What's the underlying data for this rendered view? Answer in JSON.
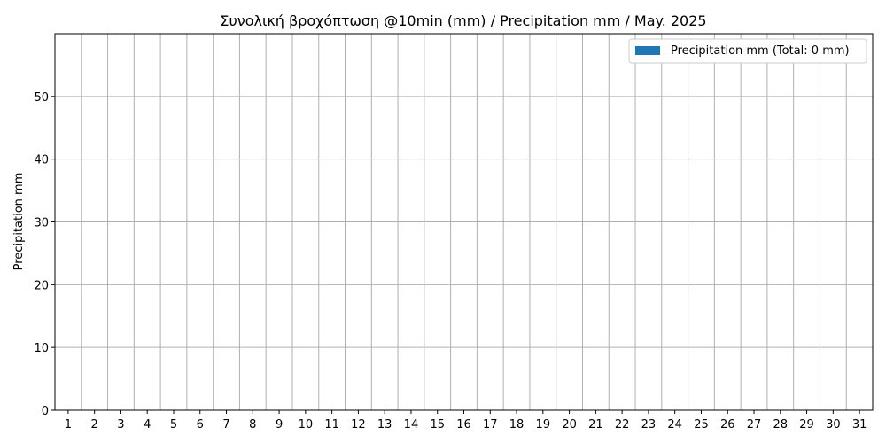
{
  "chart_data": {
    "type": "bar",
    "title": "Συνολική βροχόπτωση @10min (mm) / Precipitation mm / May. 2025",
    "xlabel": "",
    "ylabel": "Precipitation mm",
    "categories": [
      "1",
      "2",
      "3",
      "4",
      "5",
      "6",
      "7",
      "8",
      "9",
      "10",
      "11",
      "12",
      "13",
      "14",
      "15",
      "16",
      "17",
      "18",
      "19",
      "20",
      "21",
      "22",
      "23",
      "24",
      "25",
      "26",
      "27",
      "28",
      "29",
      "30",
      "31"
    ],
    "series": [
      {
        "name": "Precipitation mm (Total: 0 mm)",
        "color": "#1f77b4",
        "values": [
          0,
          0,
          0,
          0,
          0,
          0,
          0,
          0,
          0,
          0,
          0,
          0,
          0,
          0,
          0,
          0,
          0,
          0,
          0,
          0,
          0,
          0,
          0,
          0,
          0,
          0,
          0,
          0,
          0,
          0,
          0
        ]
      }
    ],
    "ylim": [
      0,
      60
    ],
    "yticks": [
      0,
      10,
      20,
      30,
      40,
      50
    ],
    "grid": true,
    "legend_position": "top-right"
  }
}
